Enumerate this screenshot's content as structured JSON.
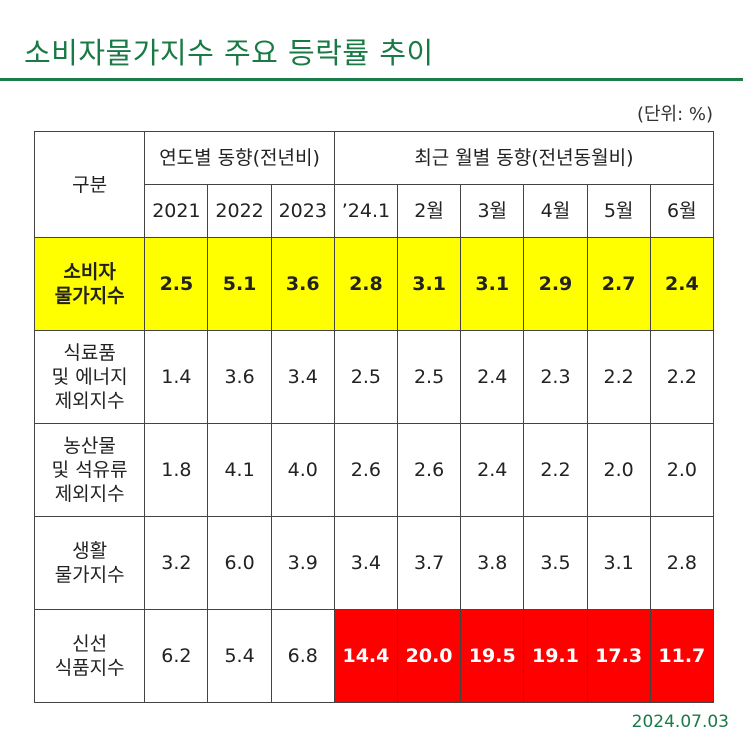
{
  "title": "소비자물가지수 주요 등락률 추이",
  "unit": "(단위: %)",
  "date": "2024.07.03",
  "header": {
    "category": "구분",
    "group_annual": "연도별 동향(전년비)",
    "group_monthly": "최근 월별 동향(전년동월비)",
    "columns": [
      "2021",
      "2022",
      "2023",
      "’24.1",
      "2월",
      "3월",
      "4월",
      "5월",
      "6월"
    ]
  },
  "rows": [
    {
      "label": [
        "소비자",
        "물가지수"
      ],
      "values": [
        "2.5",
        "5.1",
        "3.6",
        "2.8",
        "3.1",
        "3.1",
        "2.9",
        "2.7",
        "2.4"
      ]
    },
    {
      "label": [
        "식료품",
        "및 에너지",
        "제외지수"
      ],
      "values": [
        "1.4",
        "3.6",
        "3.4",
        "2.5",
        "2.5",
        "2.4",
        "2.3",
        "2.2",
        "2.2"
      ]
    },
    {
      "label": [
        "농산물",
        "및 석유류",
        "제외지수"
      ],
      "values": [
        "1.8",
        "4.1",
        "4.0",
        "2.6",
        "2.6",
        "2.4",
        "2.2",
        "2.0",
        "2.0"
      ]
    },
    {
      "label": [
        "생활",
        "물가지수"
      ],
      "values": [
        "3.2",
        "6.0",
        "3.9",
        "3.4",
        "3.7",
        "3.8",
        "3.5",
        "3.1",
        "2.8"
      ]
    },
    {
      "label": [
        "신선",
        "식품지수"
      ],
      "values": [
        "6.2",
        "5.4",
        "6.8",
        "14.4",
        "20.0",
        "19.5",
        "19.1",
        "17.3",
        "11.7"
      ]
    }
  ],
  "colors": {
    "title": "#1a7a46",
    "highlight_row": "#ffff00",
    "highlight_cells": "#ff0000"
  }
}
